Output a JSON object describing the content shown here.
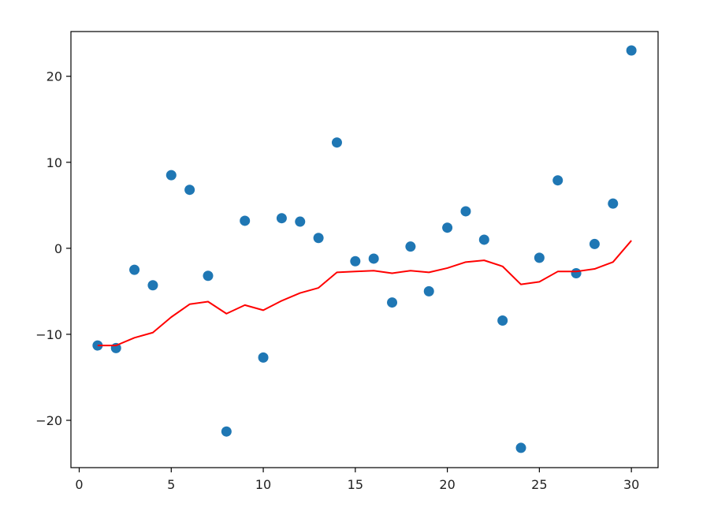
{
  "chart_data": {
    "type": "scatter",
    "title": "",
    "xlabel": "",
    "ylabel": "",
    "xlim": [
      -0.45,
      31.45
    ],
    "ylim": [
      -25.5,
      25.2
    ],
    "grid": false,
    "x_ticks": [
      {
        "value": 0,
        "label": "0"
      },
      {
        "value": 5,
        "label": "5"
      },
      {
        "value": 10,
        "label": "10"
      },
      {
        "value": 15,
        "label": "15"
      },
      {
        "value": 20,
        "label": "20"
      },
      {
        "value": 25,
        "label": "25"
      },
      {
        "value": 30,
        "label": "30"
      }
    ],
    "y_ticks": [
      {
        "value": -20,
        "label": "−20"
      },
      {
        "value": -10,
        "label": "−10"
      },
      {
        "value": 0,
        "label": "0"
      },
      {
        "value": 10,
        "label": "10"
      },
      {
        "value": 20,
        "label": "20"
      }
    ],
    "series": [
      {
        "kind": "scatter",
        "color": "#1f77b4",
        "x": [
          1,
          2,
          3,
          4,
          5,
          6,
          7,
          8,
          9,
          10,
          11,
          12,
          13,
          14,
          15,
          16,
          17,
          18,
          19,
          20,
          21,
          22,
          23,
          24,
          25,
          26,
          27,
          28,
          29,
          30
        ],
        "y": [
          -11.3,
          -11.6,
          -2.5,
          -4.3,
          8.5,
          6.8,
          -3.2,
          -21.3,
          3.2,
          -12.7,
          3.5,
          3.1,
          1.2,
          12.3,
          -1.5,
          -1.2,
          -6.3,
          0.2,
          -5.0,
          2.4,
          4.3,
          1.0,
          -8.4,
          -23.2,
          -1.1,
          7.9,
          -2.9,
          0.5,
          5.2,
          23.0
        ]
      },
      {
        "kind": "line",
        "color": "#ff0000",
        "x": [
          1,
          2,
          3,
          4,
          5,
          6,
          7,
          8,
          9,
          10,
          11,
          12,
          13,
          14,
          15,
          16,
          17,
          18,
          19,
          20,
          21,
          22,
          23,
          24,
          25,
          26,
          27,
          28,
          29,
          30
        ],
        "y": [
          -11.3,
          -11.3,
          -10.4,
          -9.8,
          -8.0,
          -6.5,
          -6.2,
          -7.6,
          -6.6,
          -7.2,
          -6.1,
          -5.2,
          -4.6,
          -2.8,
          -2.7,
          -2.6,
          -2.9,
          -2.6,
          -2.8,
          -2.3,
          -1.6,
          -1.4,
          -2.1,
          -4.2,
          -3.9,
          -2.7,
          -2.7,
          -2.4,
          -1.6,
          0.9
        ]
      }
    ]
  }
}
